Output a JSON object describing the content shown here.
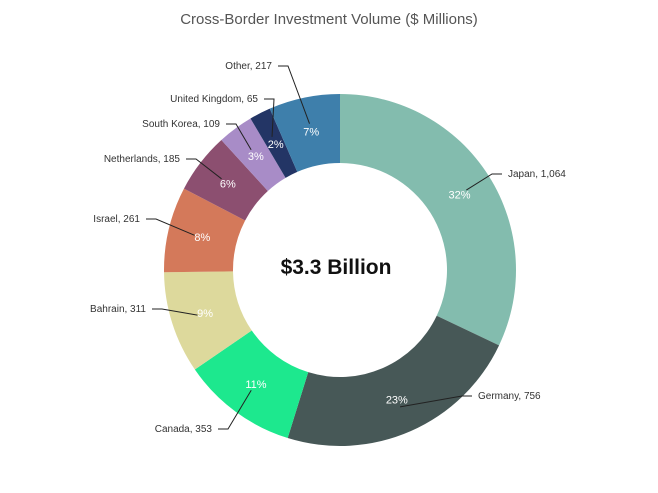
{
  "chart_data": {
    "type": "pie",
    "title": "Cross-Border Investment Volume ($ Millions)",
    "center_label": "$3.3 Billion",
    "donut": true,
    "slices": [
      {
        "name": "Japan",
        "value_label": "1,064",
        "value": 1064,
        "pct_label": "32%",
        "color": "#83bcae",
        "pct_color": "#ffffff"
      },
      {
        "name": "Germany",
        "value_label": "756",
        "value": 756,
        "pct_label": "23%",
        "color": "#475857",
        "pct_color": "#ffffff"
      },
      {
        "name": "Canada",
        "value_label": "353",
        "value": 353,
        "pct_label": "11%",
        "color": "#1de88e",
        "pct_color": "#ffffff"
      },
      {
        "name": "Bahrain",
        "value_label": "311",
        "value": 311,
        "pct_label": "9%",
        "color": "#ddd99c",
        "pct_color": "#ffffff"
      },
      {
        "name": "Israel",
        "value_label": "261",
        "value": 261,
        "pct_label": "8%",
        "color": "#d4795a",
        "pct_color": "#ffffff"
      },
      {
        "name": "Netherlands",
        "value_label": "185",
        "value": 185,
        "pct_label": "6%",
        "color": "#8c4f70",
        "pct_color": "#ffffff"
      },
      {
        "name": "South Korea",
        "value_label": "109",
        "value": 109,
        "pct_label": "3%",
        "color": "#a88cc7",
        "pct_color": "#ffffff"
      },
      {
        "name": "United Kingdom",
        "value_label": "65",
        "value": 65,
        "pct_label": "2%",
        "color": "#233565",
        "pct_color": "#ffffff"
      },
      {
        "name": "Other",
        "value_label": "217",
        "value": 217,
        "pct_label": "7%",
        "color": "#3e7fab",
        "pct_color": "#ffffff"
      }
    ]
  }
}
